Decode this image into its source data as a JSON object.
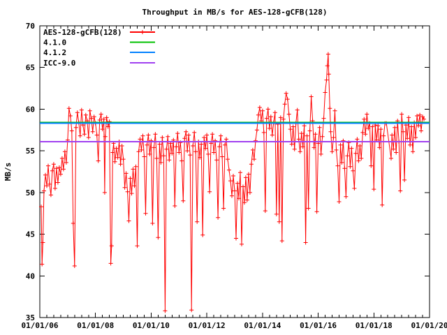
{
  "chart_data": {
    "type": "line",
    "title": "Throughput in MB/s for AES-128-gCFB(128)",
    "xlabel": "",
    "ylabel": "MB/s",
    "grid": false,
    "legend_position": "top-left",
    "background_color": "#ffffff",
    "axis_color": "#000000",
    "axes": {
      "xmin": 2006,
      "xmax": 2020,
      "ymin": 35,
      "ymax": 70,
      "ytick_major": 5,
      "xtick_minor": 0.25
    },
    "x_ticks": [
      {
        "value": 2006,
        "label": "01/01/06"
      },
      {
        "value": 2008,
        "label": "01/01/08"
      },
      {
        "value": 2010,
        "label": "01/01/10"
      },
      {
        "value": 2012,
        "label": "01/01/12"
      },
      {
        "value": 2014,
        "label": "01/01/14"
      },
      {
        "value": 2016,
        "label": "01/01/16"
      },
      {
        "value": 2018,
        "label": "01/01/18"
      },
      {
        "value": 2020,
        "label": "01/01/20"
      }
    ],
    "y_ticks": [
      35,
      40,
      45,
      50,
      55,
      60,
      65,
      70
    ],
    "series": [
      {
        "id": "aes-128-gcfb-128",
        "name": "AES-128-gCFB(128)",
        "color": "#ff0000",
        "style": "linespoints",
        "marker": "plus",
        "points": [
          [
            2006.05,
            48.3
          ],
          [
            2006.08,
            41.4
          ],
          [
            2006.11,
            44.0
          ],
          [
            2006.15,
            50.2
          ],
          [
            2006.2,
            52.1
          ],
          [
            2006.25,
            50.8
          ],
          [
            2006.3,
            53.2
          ],
          [
            2006.35,
            51.0
          ],
          [
            2006.4,
            49.7
          ],
          [
            2006.45,
            52.6
          ],
          [
            2006.5,
            53.4
          ],
          [
            2006.55,
            50.5
          ],
          [
            2006.6,
            52.9
          ],
          [
            2006.65,
            51.2
          ],
          [
            2006.7,
            53.0
          ],
          [
            2006.75,
            52.2
          ],
          [
            2006.8,
            54.1
          ],
          [
            2006.85,
            52.8
          ],
          [
            2006.9,
            54.9
          ],
          [
            2006.95,
            53.6
          ],
          [
            2007.0,
            56.3
          ],
          [
            2007.05,
            60.1
          ],
          [
            2007.1,
            59.2
          ],
          [
            2007.15,
            57.4
          ],
          [
            2007.2,
            46.3
          ],
          [
            2007.25,
            41.2
          ],
          [
            2007.3,
            57.8
          ],
          [
            2007.35,
            59.6
          ],
          [
            2007.4,
            58.4
          ],
          [
            2007.45,
            56.8
          ],
          [
            2007.5,
            59.9
          ],
          [
            2007.55,
            58.1
          ],
          [
            2007.6,
            57.0
          ],
          [
            2007.65,
            59.3
          ],
          [
            2007.7,
            58.6
          ],
          [
            2007.75,
            56.6
          ],
          [
            2007.8,
            59.8
          ],
          [
            2007.85,
            58.9
          ],
          [
            2007.9,
            57.3
          ],
          [
            2007.95,
            59.1
          ],
          [
            2008.0,
            58.3
          ],
          [
            2008.05,
            56.9
          ],
          [
            2008.1,
            53.8
          ],
          [
            2008.15,
            58.7
          ],
          [
            2008.2,
            59.4
          ],
          [
            2008.25,
            57.6
          ],
          [
            2008.3,
            58.8
          ],
          [
            2008.33,
            50.0
          ],
          [
            2008.35,
            56.7
          ],
          [
            2008.4,
            59.0
          ],
          [
            2008.45,
            57.9
          ],
          [
            2008.5,
            58.5
          ],
          [
            2008.55,
            41.5
          ],
          [
            2008.58,
            43.6
          ],
          [
            2008.62,
            54.8
          ],
          [
            2008.65,
            55.9
          ],
          [
            2008.7,
            53.7
          ],
          [
            2008.75,
            55.3
          ],
          [
            2008.8,
            54.2
          ],
          [
            2008.85,
            56.1
          ],
          [
            2008.9,
            53.4
          ],
          [
            2008.95,
            55.6
          ],
          [
            2009.0,
            54.0
          ],
          [
            2009.05,
            50.6
          ],
          [
            2009.1,
            52.3
          ],
          [
            2009.15,
            50.1
          ],
          [
            2009.2,
            46.6
          ],
          [
            2009.25,
            51.7
          ],
          [
            2009.3,
            49.9
          ],
          [
            2009.35,
            52.8
          ],
          [
            2009.4,
            50.8
          ],
          [
            2009.45,
            53.1
          ],
          [
            2009.5,
            43.6
          ],
          [
            2009.55,
            54.9
          ],
          [
            2009.6,
            56.4
          ],
          [
            2009.65,
            55.1
          ],
          [
            2009.7,
            56.8
          ],
          [
            2009.75,
            54.3
          ],
          [
            2009.8,
            47.5
          ],
          [
            2009.85,
            55.7
          ],
          [
            2009.9,
            56.9
          ],
          [
            2009.95,
            54.6
          ],
          [
            2010.0,
            56.2
          ],
          [
            2010.05,
            46.3
          ],
          [
            2010.1,
            55.4
          ],
          [
            2010.15,
            57.0
          ],
          [
            2010.2,
            54.1
          ],
          [
            2010.25,
            44.6
          ],
          [
            2010.3,
            55.8
          ],
          [
            2010.35,
            53.6
          ],
          [
            2010.4,
            56.6
          ],
          [
            2010.45,
            54.4
          ],
          [
            2010.5,
            35.8
          ],
          [
            2010.55,
            55.2
          ],
          [
            2010.6,
            56.7
          ],
          [
            2010.65,
            53.9
          ],
          [
            2010.7,
            55.9
          ],
          [
            2010.75,
            54.7
          ],
          [
            2010.8,
            56.3
          ],
          [
            2010.85,
            48.4
          ],
          [
            2010.9,
            55.5
          ],
          [
            2010.95,
            57.1
          ],
          [
            2011.0,
            54.8
          ],
          [
            2011.05,
            56.0
          ],
          [
            2011.1,
            53.8
          ],
          [
            2011.15,
            49.0
          ],
          [
            2011.2,
            56.5
          ],
          [
            2011.25,
            57.3
          ],
          [
            2011.3,
            55.0
          ],
          [
            2011.35,
            56.9
          ],
          [
            2011.4,
            54.5
          ],
          [
            2011.45,
            35.9
          ],
          [
            2011.5,
            55.6
          ],
          [
            2011.55,
            57.2
          ],
          [
            2011.6,
            54.9
          ],
          [
            2011.65,
            46.5
          ],
          [
            2011.7,
            56.1
          ],
          [
            2011.75,
            54.2
          ],
          [
            2011.8,
            55.8
          ],
          [
            2011.85,
            44.9
          ],
          [
            2011.9,
            56.6
          ],
          [
            2011.95,
            55.3
          ],
          [
            2012.0,
            56.9
          ],
          [
            2012.05,
            54.6
          ],
          [
            2012.1,
            50.1
          ],
          [
            2012.15,
            55.9
          ],
          [
            2012.2,
            57.0
          ],
          [
            2012.25,
            54.8
          ],
          [
            2012.3,
            56.2
          ],
          [
            2012.35,
            53.9
          ],
          [
            2012.4,
            47.0
          ],
          [
            2012.45,
            55.5
          ],
          [
            2012.5,
            56.8
          ],
          [
            2012.55,
            54.3
          ],
          [
            2012.6,
            48.1
          ],
          [
            2012.65,
            55.7
          ],
          [
            2012.7,
            56.4
          ],
          [
            2012.75,
            54.0
          ],
          [
            2012.8,
            52.7
          ],
          [
            2012.85,
            51.4
          ],
          [
            2012.9,
            49.6
          ],
          [
            2012.95,
            52.0
          ],
          [
            2013.0,
            50.2
          ],
          [
            2013.05,
            44.5
          ],
          [
            2013.1,
            51.1
          ],
          [
            2013.15,
            49.3
          ],
          [
            2013.2,
            52.4
          ],
          [
            2013.25,
            43.8
          ],
          [
            2013.3,
            50.7
          ],
          [
            2013.35,
            48.8
          ],
          [
            2013.4,
            51.8
          ],
          [
            2013.45,
            49.1
          ],
          [
            2013.5,
            52.2
          ],
          [
            2013.55,
            50.0
          ],
          [
            2013.6,
            53.4
          ],
          [
            2013.65,
            55.1
          ],
          [
            2013.7,
            54.0
          ],
          [
            2013.75,
            56.2
          ],
          [
            2013.8,
            57.5
          ],
          [
            2013.85,
            59.3
          ],
          [
            2013.9,
            60.2
          ],
          [
            2013.95,
            58.6
          ],
          [
            2014.0,
            59.8
          ],
          [
            2014.05,
            57.2
          ],
          [
            2014.1,
            47.8
          ],
          [
            2014.15,
            58.9
          ],
          [
            2014.2,
            60.0
          ],
          [
            2014.25,
            57.7
          ],
          [
            2014.3,
            59.1
          ],
          [
            2014.35,
            56.9
          ],
          [
            2014.4,
            58.4
          ],
          [
            2014.45,
            59.6
          ],
          [
            2014.5,
            47.4
          ],
          [
            2014.55,
            58.2
          ],
          [
            2014.6,
            46.5
          ],
          [
            2014.65,
            59.0
          ],
          [
            2014.7,
            44.2
          ],
          [
            2014.75,
            58.8
          ],
          [
            2014.8,
            60.6
          ],
          [
            2014.85,
            61.9
          ],
          [
            2014.9,
            61.2
          ],
          [
            2014.95,
            59.4
          ],
          [
            2015.0,
            57.6
          ],
          [
            2015.05,
            55.8
          ],
          [
            2015.1,
            57.9
          ],
          [
            2015.15,
            55.2
          ],
          [
            2015.2,
            58.3
          ],
          [
            2015.25,
            59.9
          ],
          [
            2015.3,
            56.4
          ],
          [
            2015.35,
            54.9
          ],
          [
            2015.4,
            57.1
          ],
          [
            2015.45,
            55.5
          ],
          [
            2015.5,
            58.0
          ],
          [
            2015.55,
            44.0
          ],
          [
            2015.6,
            56.8
          ],
          [
            2015.65,
            48.1
          ],
          [
            2015.7,
            57.4
          ],
          [
            2015.75,
            61.5
          ],
          [
            2015.8,
            58.6
          ],
          [
            2015.85,
            55.4
          ],
          [
            2015.9,
            57.0
          ],
          [
            2015.95,
            47.7
          ],
          [
            2016.0,
            55.9
          ],
          [
            2016.05,
            57.8
          ],
          [
            2016.1,
            54.6
          ],
          [
            2016.15,
            56.7
          ],
          [
            2016.2,
            58.9
          ],
          [
            2016.25,
            62.0
          ],
          [
            2016.3,
            63.5
          ],
          [
            2016.33,
            65.2
          ],
          [
            2016.36,
            66.6
          ],
          [
            2016.38,
            64.2
          ],
          [
            2016.42,
            60.1
          ],
          [
            2016.45,
            57.3
          ],
          [
            2016.5,
            54.9
          ],
          [
            2016.55,
            56.6
          ],
          [
            2016.6,
            59.8
          ],
          [
            2016.65,
            55.1
          ],
          [
            2016.7,
            53.2
          ],
          [
            2016.75,
            48.9
          ],
          [
            2016.8,
            55.7
          ],
          [
            2016.85,
            53.6
          ],
          [
            2016.9,
            56.2
          ],
          [
            2016.95,
            52.9
          ],
          [
            2017.0,
            49.5
          ],
          [
            2017.05,
            54.4
          ],
          [
            2017.1,
            56.0
          ],
          [
            2017.15,
            53.1
          ],
          [
            2017.2,
            55.3
          ],
          [
            2017.25,
            52.6
          ],
          [
            2017.3,
            50.5
          ],
          [
            2017.35,
            54.7
          ],
          [
            2017.4,
            56.4
          ],
          [
            2017.45,
            53.8
          ],
          [
            2017.5,
            55.6
          ],
          [
            2017.55,
            54.1
          ],
          [
            2017.6,
            57.2
          ],
          [
            2017.65,
            58.8
          ],
          [
            2017.7,
            57.0
          ],
          [
            2017.75,
            59.4
          ],
          [
            2017.8,
            57.7
          ],
          [
            2017.85,
            58.3
          ],
          [
            2017.9,
            53.2
          ],
          [
            2017.95,
            57.9
          ],
          [
            2018.0,
            50.4
          ],
          [
            2018.05,
            58.1
          ],
          [
            2018.1,
            56.3
          ],
          [
            2018.15,
            58.0
          ],
          [
            2018.2,
            55.4
          ],
          [
            2018.25,
            57.6
          ],
          [
            2018.3,
            48.5
          ],
          [
            2018.35,
            56.8
          ],
          [
            2018.4,
            58.3
          ],
          [
            2018.45,
            58.3
          ],
          [
            2018.62,
            54.1
          ],
          [
            2018.65,
            56.9
          ],
          [
            2018.7,
            55.2
          ],
          [
            2018.75,
            57.8
          ],
          [
            2018.8,
            54.8
          ],
          [
            2018.85,
            58.6
          ],
          [
            2018.9,
            56.1
          ],
          [
            2018.95,
            50.2
          ],
          [
            2019.0,
            59.4
          ],
          [
            2019.05,
            57.3
          ],
          [
            2019.1,
            51.5
          ],
          [
            2019.15,
            58.1
          ],
          [
            2019.2,
            56.5
          ],
          [
            2019.25,
            59.0
          ],
          [
            2019.3,
            55.7
          ],
          [
            2019.35,
            57.9
          ],
          [
            2019.4,
            54.9
          ],
          [
            2019.45,
            58.4
          ],
          [
            2019.5,
            56.6
          ],
          [
            2019.55,
            59.2
          ],
          [
            2019.6,
            58.0
          ],
          [
            2019.65,
            59.3
          ],
          [
            2019.7,
            57.4
          ],
          [
            2019.75,
            59.1
          ],
          [
            2019.8,
            58.8
          ]
        ]
      },
      {
        "id": "v4-1-0",
        "name": "4.1.0",
        "color": "#00c000",
        "style": "hline",
        "value": 58.4
      },
      {
        "id": "v4-1-2",
        "name": "4.1.2",
        "color": "#0080ff",
        "style": "hline",
        "value": 58.3
      },
      {
        "id": "icc-9-0",
        "name": "ICC-9.0",
        "color": "#a040f0",
        "style": "hline",
        "value": 56.1
      }
    ]
  }
}
